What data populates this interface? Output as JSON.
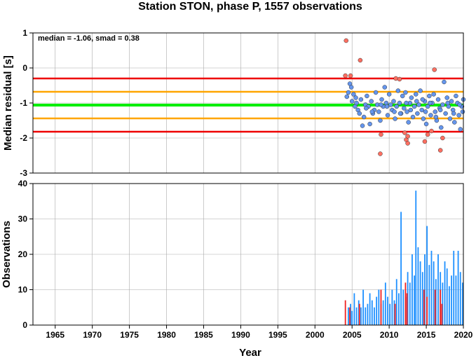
{
  "chart_data": [
    {
      "type": "scatter",
      "title": "Station STON, phase P, 1557 observations",
      "ylabel": "Median residual [s]",
      "xlim": [
        1962,
        2020
      ],
      "ylim": [
        -3,
        1
      ],
      "yticks": [
        "1",
        "0",
        "-1",
        "-2",
        "-3"
      ],
      "annotation": "median = -1.06, smad = 0.38",
      "grid": true,
      "reference_lines": [
        {
          "name": "median",
          "value": -1.06,
          "color": "#00ee00"
        },
        {
          "name": "median_plus_1_smad",
          "value": -0.68,
          "color": "#ffa500"
        },
        {
          "name": "median_minus_1_smad",
          "value": -1.44,
          "color": "#ffa500"
        },
        {
          "name": "median_plus_2_smad",
          "value": -0.3,
          "color": "#ee0000"
        },
        {
          "name": "median_minus_2_smad",
          "value": -1.82,
          "color": "#ee0000"
        }
      ],
      "series": [
        {
          "color": "#6495ed",
          "points": [
            [
              2004.3,
              -0.82
            ],
            [
              2004.5,
              -0.7
            ],
            [
              2004.7,
              -0.45
            ],
            [
              2004.9,
              -0.55
            ],
            [
              2005.0,
              -0.95
            ],
            [
              2005.2,
              -0.75
            ],
            [
              2005.4,
              -1.1
            ],
            [
              2005.6,
              -1.0
            ],
            [
              2005.8,
              -1.2
            ],
            [
              2006.0,
              -1.3
            ],
            [
              2006.2,
              -0.9
            ],
            [
              2006.4,
              -1.65
            ],
            [
              2006.6,
              -1.4
            ],
            [
              2006.8,
              -1.05
            ],
            [
              2007.0,
              -0.8
            ],
            [
              2007.2,
              -1.1
            ],
            [
              2007.4,
              -1.6
            ],
            [
              2007.6,
              -0.95
            ],
            [
              2007.8,
              -1.3
            ],
            [
              2008.0,
              -1.2
            ],
            [
              2008.2,
              -0.7
            ],
            [
              2008.4,
              -1.05
            ],
            [
              2008.6,
              -1.25
            ],
            [
              2008.8,
              -1.5
            ],
            [
              2009.0,
              -0.9
            ],
            [
              2009.2,
              -1.1
            ],
            [
              2009.4,
              -0.55
            ],
            [
              2009.6,
              -1.0
            ],
            [
              2009.8,
              -1.35
            ],
            [
              2010.0,
              -0.75
            ],
            [
              2010.2,
              -1.05
            ],
            [
              2010.4,
              -1.2
            ],
            [
              2010.6,
              -0.95
            ],
            [
              2010.8,
              -1.45
            ],
            [
              2011.0,
              -1.1
            ],
            [
              2011.2,
              -0.65
            ],
            [
              2011.4,
              -1.0
            ],
            [
              2011.6,
              -1.3
            ],
            [
              2011.8,
              -0.8
            ],
            [
              2012.0,
              -1.15
            ],
            [
              2012.2,
              -0.7
            ],
            [
              2012.4,
              -1.25
            ],
            [
              2012.6,
              -1.55
            ],
            [
              2012.8,
              -1.0
            ],
            [
              2013.0,
              -0.85
            ],
            [
              2013.2,
              -1.4
            ],
            [
              2013.4,
              -1.1
            ],
            [
              2013.6,
              -0.75
            ],
            [
              2013.8,
              -1.3
            ],
            [
              2014.0,
              -1.05
            ],
            [
              2014.2,
              -0.65
            ],
            [
              2014.4,
              -1.2
            ],
            [
              2014.6,
              -1.45
            ],
            [
              2014.8,
              -0.95
            ],
            [
              2015.0,
              -1.6
            ],
            [
              2015.2,
              -1.1
            ],
            [
              2015.4,
              -0.8
            ],
            [
              2015.6,
              -1.35
            ],
            [
              2015.8,
              -1.0
            ],
            [
              2016.0,
              -0.75
            ],
            [
              2016.2,
              -1.25
            ],
            [
              2016.4,
              -1.5
            ],
            [
              2016.6,
              -0.9
            ],
            [
              2016.8,
              -1.15
            ],
            [
              2017.0,
              -1.7
            ],
            [
              2017.2,
              -1.05
            ],
            [
              2017.4,
              -0.4
            ],
            [
              2017.6,
              -1.3
            ],
            [
              2017.8,
              -0.85
            ],
            [
              2018.0,
              -1.1
            ],
            [
              2018.2,
              -1.45
            ],
            [
              2018.4,
              -0.95
            ],
            [
              2018.6,
              -1.2
            ],
            [
              2018.8,
              -1.55
            ],
            [
              2019.0,
              -0.8
            ],
            [
              2019.2,
              -1.0
            ],
            [
              2019.4,
              -1.35
            ],
            [
              2019.6,
              -1.75
            ],
            [
              2019.8,
              -1.1
            ],
            [
              2020.0,
              -0.9
            ],
            [
              2012.9,
              -1.2
            ],
            [
              2013.7,
              -0.95
            ],
            [
              2014.9,
              -1.25
            ],
            [
              2016.3,
              -1.4
            ],
            [
              2017.9,
              -1.0
            ],
            [
              2010.7,
              -1.25
            ],
            [
              2008.9,
              -1.05
            ],
            [
              2006.9,
              -1.15
            ],
            [
              2005.5,
              -0.85
            ],
            [
              2018.7,
              -1.3
            ],
            [
              2019.5,
              -1.05
            ],
            [
              2015.5,
              -1.0
            ],
            [
              2011.5,
              -1.3
            ],
            [
              2009.7,
              -1.1
            ],
            [
              2007.7,
              -1.25
            ],
            [
              2016.9,
              -1.2
            ],
            [
              2014.5,
              -0.9
            ],
            [
              2012.3,
              -1.0
            ],
            [
              2019.9,
              -1.25
            ]
          ]
        },
        {
          "color": "#ff6f61",
          "points": [
            [
              2004.2,
              0.78
            ],
            [
              2006.1,
              0.22
            ],
            [
              2004.1,
              -0.22
            ],
            [
              2004.8,
              -0.22
            ],
            [
              2016.1,
              -0.05
            ],
            [
              2010.9,
              -0.3
            ],
            [
              2011.4,
              -0.32
            ],
            [
              2008.9,
              -1.9
            ],
            [
              2008.8,
              -2.45
            ],
            [
              2012.1,
              -1.85
            ],
            [
              2012.3,
              -2.05
            ],
            [
              2012.5,
              -2.15
            ],
            [
              2014.8,
              -2.1
            ],
            [
              2015.2,
              -1.9
            ],
            [
              2015.7,
              -1.8
            ],
            [
              2016.9,
              -2.35
            ],
            [
              2017.2,
              -2.0
            ],
            [
              2012.5,
              -1.95
            ]
          ]
        }
      ]
    },
    {
      "type": "bar",
      "ylabel": "Observations",
      "xlabel": "Year",
      "xlim": [
        1962,
        2020
      ],
      "ylim": [
        0,
        40
      ],
      "yticks": [
        "40",
        "30",
        "20",
        "10",
        "0"
      ],
      "xticks": [
        "1965",
        "1970",
        "1975",
        "1980",
        "1985",
        "1990",
        "1995",
        "2000",
        "2005",
        "2010",
        "2015",
        "2020"
      ],
      "grid": true,
      "series": [
        {
          "color": "#1e90ff",
          "points": [
            [
              2004.5,
              5
            ],
            [
              2004.8,
              6
            ],
            [
              2005.0,
              4
            ],
            [
              2005.3,
              9
            ],
            [
              2005.6,
              5
            ],
            [
              2005.9,
              7
            ],
            [
              2006.2,
              5
            ],
            [
              2006.5,
              10
            ],
            [
              2006.8,
              5
            ],
            [
              2007.1,
              6
            ],
            [
              2007.4,
              9
            ],
            [
              2007.7,
              7
            ],
            [
              2008.0,
              5
            ],
            [
              2008.3,
              8
            ],
            [
              2008.6,
              10
            ],
            [
              2008.9,
              6
            ],
            [
              2009.2,
              7
            ],
            [
              2009.5,
              12
            ],
            [
              2009.8,
              8
            ],
            [
              2010.1,
              6
            ],
            [
              2010.4,
              10
            ],
            [
              2010.7,
              7
            ],
            [
              2011.0,
              13
            ],
            [
              2011.3,
              9
            ],
            [
              2011.6,
              32
            ],
            [
              2011.9,
              10
            ],
            [
              2012.2,
              8
            ],
            [
              2012.5,
              15
            ],
            [
              2012.8,
              12
            ],
            [
              2013.1,
              20
            ],
            [
              2013.4,
              14
            ],
            [
              2013.6,
              38
            ],
            [
              2013.9,
              22
            ],
            [
              2014.2,
              18
            ],
            [
              2014.5,
              15
            ],
            [
              2014.8,
              20
            ],
            [
              2015.1,
              28
            ],
            [
              2015.4,
              17
            ],
            [
              2015.7,
              21
            ],
            [
              2016.0,
              18
            ],
            [
              2016.3,
              13
            ],
            [
              2016.6,
              20
            ],
            [
              2016.9,
              15
            ],
            [
              2017.2,
              12
            ],
            [
              2017.5,
              18
            ],
            [
              2017.8,
              16
            ],
            [
              2018.1,
              11
            ],
            [
              2018.4,
              14
            ],
            [
              2018.7,
              21
            ],
            [
              2019.0,
              14
            ],
            [
              2019.3,
              21
            ],
            [
              2019.6,
              15
            ],
            [
              2019.9,
              12
            ]
          ]
        },
        {
          "color": "#ee2222",
          "points": [
            [
              2004.1,
              7
            ],
            [
              2004.7,
              5
            ],
            [
              2006.0,
              6
            ],
            [
              2008.9,
              10
            ],
            [
              2010.8,
              6
            ],
            [
              2012.2,
              12
            ],
            [
              2012.4,
              9
            ],
            [
              2014.7,
              10
            ],
            [
              2015.1,
              8
            ],
            [
              2016.2,
              10
            ],
            [
              2016.9,
              10
            ],
            [
              2017.1,
              6
            ]
          ]
        }
      ]
    }
  ]
}
